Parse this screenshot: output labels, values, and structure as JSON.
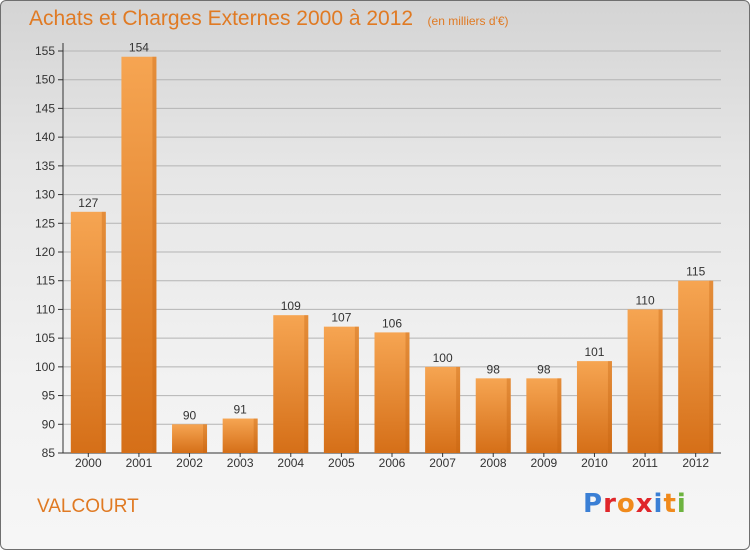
{
  "title": "Achats et Charges Externes 2000 à 2012",
  "subtitle": "(en milliers d'€)",
  "commune": "VALCOURT",
  "logo": {
    "text": "Proxiti",
    "letter_colors": [
      "#3a7fd5",
      "#e0262a",
      "#f08a1c",
      "#e0262a",
      "#3a7fd5",
      "#f08a1c",
      "#6db33f"
    ]
  },
  "colors": {
    "accent": "#e07a23",
    "bar_top": "#f6a552",
    "bar_bottom": "#d56f18",
    "grid": "#b4b4b4",
    "axis": "#333333"
  },
  "chart_data": {
    "type": "bar",
    "categories": [
      "2000",
      "2001",
      "2002",
      "2003",
      "2004",
      "2005",
      "2006",
      "2007",
      "2008",
      "2009",
      "2010",
      "2011",
      "2012"
    ],
    "values": [
      127,
      154,
      90,
      91,
      109,
      107,
      106,
      100,
      98,
      98,
      101,
      110,
      115
    ],
    "ylim": [
      85,
      155
    ],
    "yticks": [
      85,
      90,
      95,
      100,
      105,
      110,
      115,
      120,
      125,
      130,
      135,
      140,
      145,
      150,
      155
    ],
    "grid": true,
    "data_labels": true
  }
}
